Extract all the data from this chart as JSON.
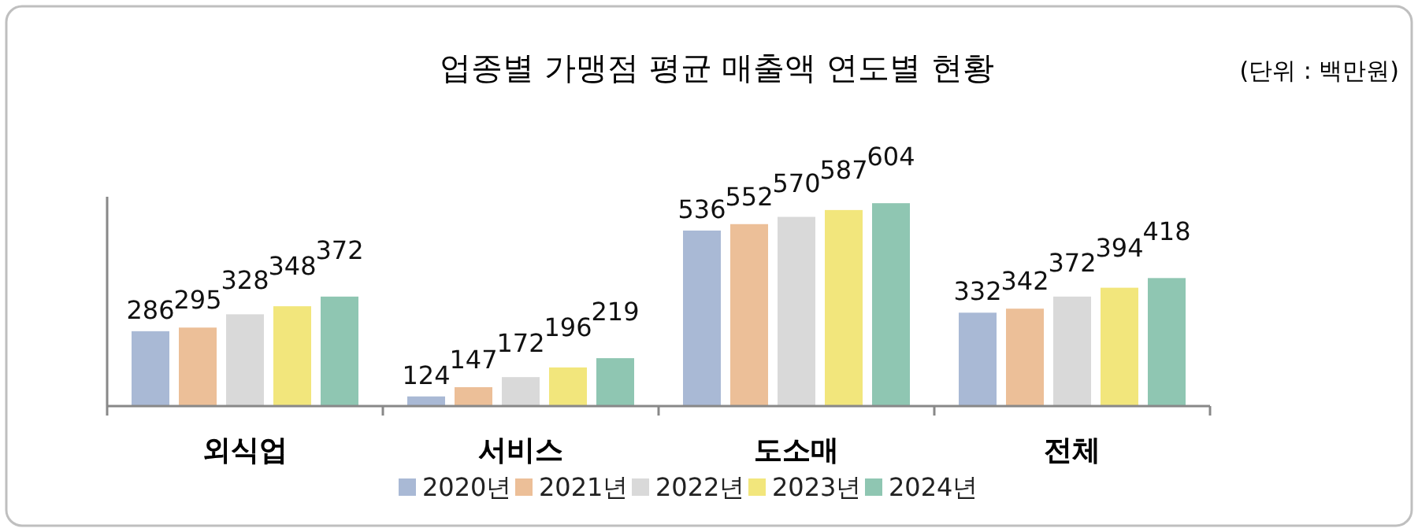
{
  "chart_data": {
    "type": "bar",
    "title": "업종별 가맹점 평균 매출액 연도별 현황",
    "annotations": [
      "(단위 : 백만원)"
    ],
    "categories": [
      "외식업",
      "서비스",
      "도소매",
      "전체"
    ],
    "series": [
      {
        "name": "2020년",
        "color": "#a9b9d5",
        "values": [
          286,
          124,
          536,
          332
        ]
      },
      {
        "name": "2021년",
        "color": "#ecbf98",
        "values": [
          295,
          147,
          552,
          342
        ]
      },
      {
        "name": "2022년",
        "color": "#d9d9d9",
        "values": [
          328,
          172,
          570,
          372
        ]
      },
      {
        "name": "2023년",
        "color": "#f2e67c",
        "values": [
          348,
          196,
          587,
          394
        ]
      },
      {
        "name": "2024년",
        "color": "#8fc6b2",
        "values": [
          372,
          219,
          604,
          418
        ]
      }
    ],
    "ylim": [
      100,
      620
    ],
    "tick_labels": "x",
    "data_labels": true,
    "legend": "bottom"
  }
}
